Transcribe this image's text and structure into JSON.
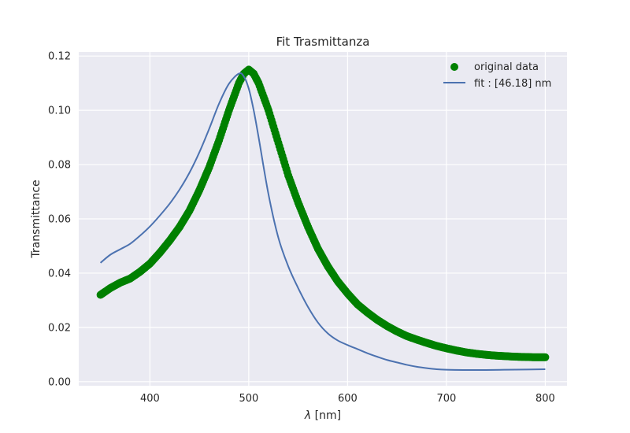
{
  "chart_data": {
    "type": "scatter",
    "title": "Fit Trasmittanza",
    "xlabel_symbol": "λ",
    "xlabel_unit": " [nm]",
    "ylabel": "Transmittance",
    "xlim": [
      328,
      822
    ],
    "ylim": [
      -0.0015,
      0.1215
    ],
    "xticks": [
      400,
      500,
      600,
      700,
      800
    ],
    "yticks": [
      0.0,
      0.02,
      0.04,
      0.06,
      0.08,
      0.1,
      0.12
    ],
    "ytick_labels": [
      "0.00",
      "0.02",
      "0.04",
      "0.06",
      "0.08",
      "0.10",
      "0.12"
    ],
    "grid": true,
    "legend_position": "top-right",
    "series": [
      {
        "name": "original data",
        "kind": "scatter",
        "color": "#008000",
        "x_range": [
          350,
          800
        ],
        "x_step": 1,
        "x": [
          350,
          360,
          370,
          380,
          390,
          400,
          410,
          420,
          430,
          440,
          450,
          460,
          470,
          480,
          490,
          495,
          500,
          505,
          510,
          520,
          530,
          540,
          550,
          560,
          570,
          580,
          590,
          600,
          610,
          620,
          630,
          640,
          650,
          660,
          670,
          680,
          690,
          700,
          710,
          720,
          730,
          740,
          750,
          760,
          770,
          780,
          790,
          800
        ],
        "y": [
          0.032,
          0.0345,
          0.0365,
          0.038,
          0.0405,
          0.0435,
          0.0475,
          0.052,
          0.057,
          0.063,
          0.0705,
          0.079,
          0.089,
          0.1,
          0.11,
          0.1135,
          0.115,
          0.1135,
          0.11,
          0.1,
          0.088,
          0.076,
          0.066,
          0.057,
          0.049,
          0.0425,
          0.037,
          0.0325,
          0.0285,
          0.0255,
          0.0228,
          0.0205,
          0.0185,
          0.0168,
          0.0155,
          0.0143,
          0.0132,
          0.0123,
          0.0115,
          0.0108,
          0.0103,
          0.0099,
          0.0096,
          0.0094,
          0.0092,
          0.0091,
          0.009,
          0.009
        ]
      },
      {
        "name": "fit : [46.18] nm",
        "kind": "line",
        "color": "#4c72b0",
        "x": [
          350,
          360,
          370,
          380,
          390,
          400,
          410,
          420,
          430,
          440,
          450,
          460,
          470,
          480,
          490,
          495,
          500,
          505,
          510,
          520,
          530,
          540,
          550,
          560,
          570,
          580,
          590,
          600,
          610,
          620,
          630,
          640,
          650,
          660,
          670,
          680,
          690,
          700,
          720,
          740,
          760,
          780,
          800
        ],
        "y": [
          0.0438,
          0.0468,
          0.0488,
          0.0508,
          0.0538,
          0.0572,
          0.0612,
          0.0656,
          0.0708,
          0.077,
          0.0845,
          0.0932,
          0.1025,
          0.1098,
          0.1135,
          0.1125,
          0.108,
          0.1,
          0.09,
          0.069,
          0.053,
          0.0425,
          0.0345,
          0.0275,
          0.0218,
          0.0178,
          0.0152,
          0.0135,
          0.012,
          0.0105,
          0.0092,
          0.008,
          0.0071,
          0.0062,
          0.0055,
          0.005,
          0.0046,
          0.0044,
          0.0043,
          0.0043,
          0.0044,
          0.0045,
          0.0046
        ]
      }
    ]
  }
}
